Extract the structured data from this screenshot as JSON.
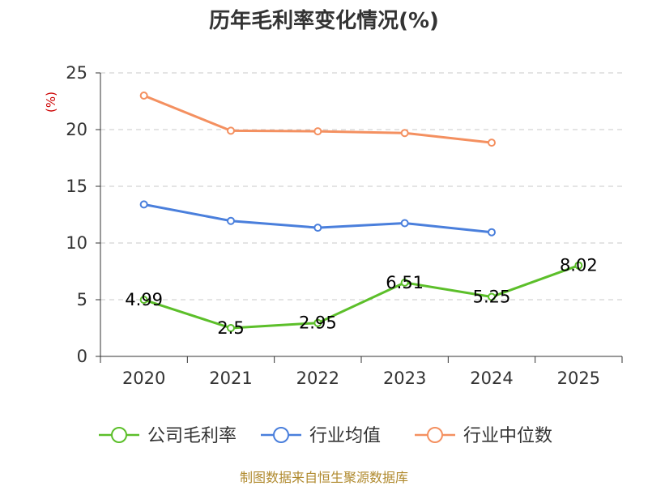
{
  "chart_data": {
    "type": "line",
    "title": "历年毛利率变化情况(%)",
    "ylabel": "(%)",
    "xlabel": "",
    "categories": [
      "2020",
      "2021",
      "2022",
      "2023",
      "2024",
      "2025"
    ],
    "ylim": [
      0,
      25
    ],
    "yticks": [
      0,
      5,
      10,
      15,
      20,
      25
    ],
    "grid": true,
    "legend": "bottom",
    "series": [
      {
        "name": "公司毛利率",
        "color": "#5cbf2a",
        "values": [
          4.99,
          2.5,
          2.95,
          6.51,
          5.25,
          8.02
        ],
        "show_labels": true,
        "labels": [
          "4.99",
          "2.5",
          "2.95",
          "6.51",
          "5.25",
          "8.02"
        ]
      },
      {
        "name": "行业均值",
        "color": "#4a7fdc",
        "values": [
          13.4,
          11.95,
          11.35,
          11.75,
          10.95,
          null
        ],
        "show_labels": false
      },
      {
        "name": "行业中位数",
        "color": "#f49060",
        "values": [
          23.0,
          19.9,
          19.85,
          19.7,
          18.85,
          null
        ],
        "show_labels": false
      }
    ],
    "source": "制图数据来自恒生聚源数据库"
  }
}
